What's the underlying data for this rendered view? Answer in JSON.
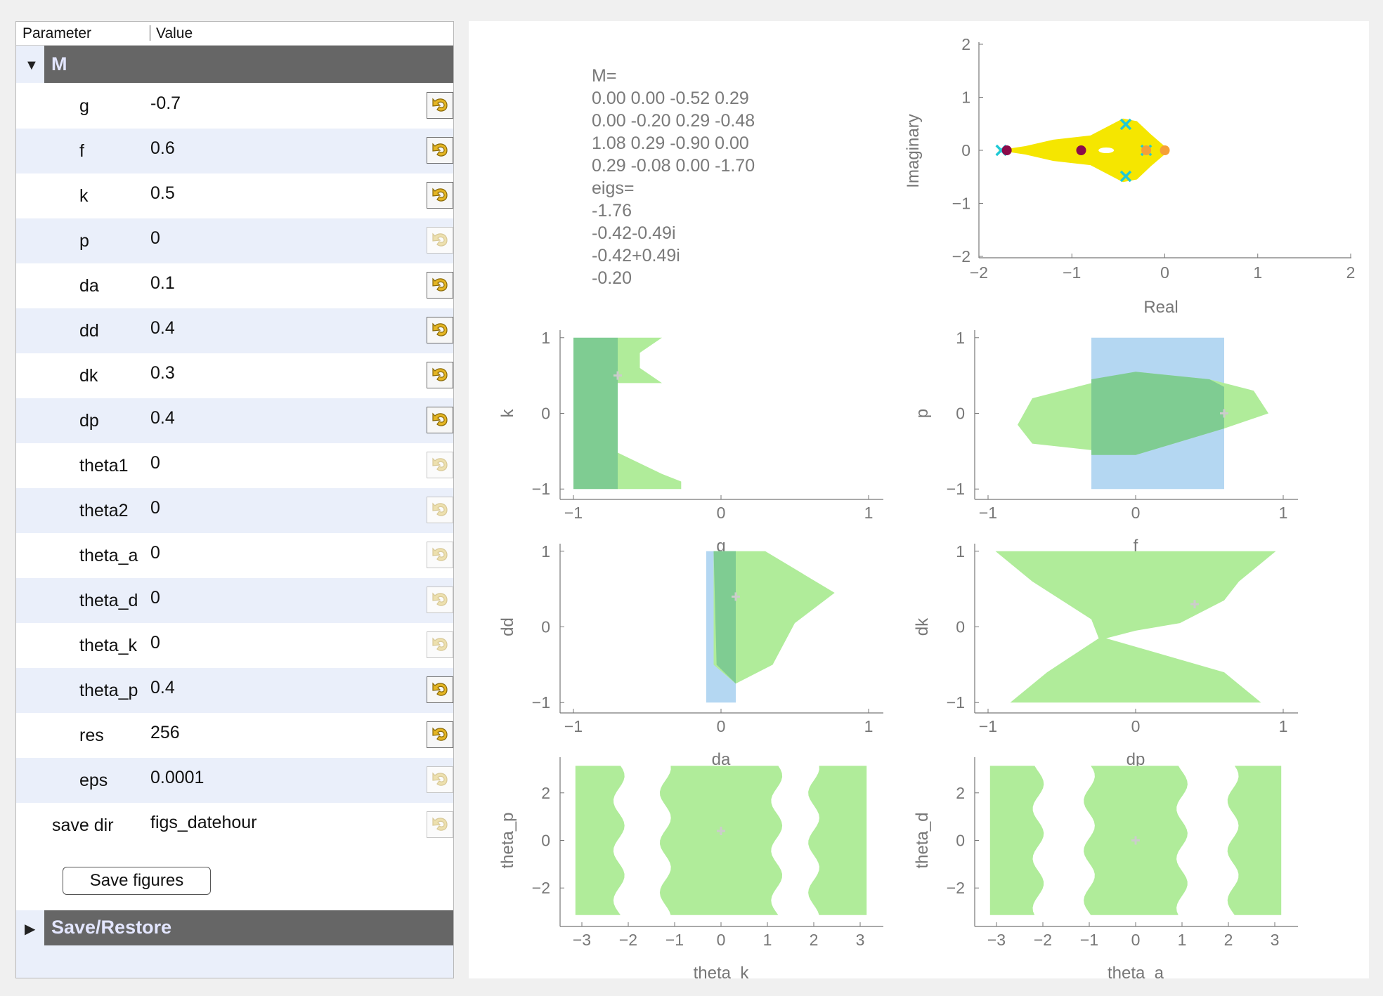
{
  "panel": {
    "header": {
      "parameter": "Parameter",
      "value": "Value"
    },
    "groups": {
      "m": "M",
      "save_restore": "Save/Restore"
    },
    "rows": [
      {
        "name": "g",
        "value": "-0.7",
        "reset_active": true
      },
      {
        "name": "f",
        "value": "0.6",
        "reset_active": true
      },
      {
        "name": "k",
        "value": "0.5",
        "reset_active": true
      },
      {
        "name": "p",
        "value": "0",
        "reset_active": false
      },
      {
        "name": "da",
        "value": "0.1",
        "reset_active": true
      },
      {
        "name": "dd",
        "value": "0.4",
        "reset_active": true
      },
      {
        "name": "dk",
        "value": "0.3",
        "reset_active": true
      },
      {
        "name": "dp",
        "value": "0.4",
        "reset_active": true
      },
      {
        "name": "theta1",
        "value": "0",
        "reset_active": false
      },
      {
        "name": "theta2",
        "value": "0",
        "reset_active": false
      },
      {
        "name": "theta_a",
        "value": "0",
        "reset_active": false
      },
      {
        "name": "theta_d",
        "value": "0",
        "reset_active": false
      },
      {
        "name": "theta_k",
        "value": "0",
        "reset_active": false
      },
      {
        "name": "theta_p",
        "value": "0.4",
        "reset_active": true
      },
      {
        "name": "res",
        "value": "256",
        "reset_active": true
      },
      {
        "name": "eps",
        "value": "0.0001",
        "reset_active": false
      },
      {
        "name": "save dir",
        "value": "figs_datehour",
        "reset_active": false
      }
    ],
    "save_button": "Save figures"
  },
  "matrix_text": [
    "M=",
    "0.00 0.00 -0.52 0.29",
    "0.00 -0.20 0.29 -0.48",
    "1.08 0.29 -0.90 0.00",
    "0.29 -0.08 0.00 -1.70",
    "eigs=",
    "-1.76",
    "-0.42-0.49i",
    "-0.42+0.49i",
    "-0.20"
  ],
  "colors": {
    "group_bar": "#666666",
    "group_title": "#e3e6ff",
    "alt_row": "#eaeffa",
    "stable_region": "#b0ec9a",
    "overlap_region": "#7fcc92",
    "blue_region": "#b4d7f2",
    "eig_cloud": "#f5e600",
    "eig_marker": "#1ec9d6",
    "dark_dot": "#8b0a4a",
    "orange_dot": "#f5a037",
    "current_point": "#cccccc",
    "axis": "#777777",
    "tick_text": "#777777"
  },
  "chart_data": [
    {
      "type": "scatter",
      "title": "",
      "xlabel": "Real",
      "ylabel": "Imaginary",
      "xlim": [
        -2,
        2
      ],
      "ylim": [
        -2,
        2
      ],
      "xticks": [
        "-2",
        "-1",
        "0",
        "1",
        "2"
      ],
      "yticks": [
        "-2",
        "-1",
        "0",
        "1",
        "2"
      ],
      "series": [
        {
          "marker": "x",
          "color": "#1ec9d6",
          "points": [
            [
              -1.76,
              0
            ],
            [
              -0.42,
              -0.49
            ],
            [
              -0.42,
              0.49
            ],
            [
              -0.2,
              0
            ]
          ]
        },
        {
          "marker": "dot",
          "color": "#8b0a4a",
          "points": [
            [
              -1.7,
              0
            ],
            [
              -0.9,
              0
            ]
          ]
        },
        {
          "marker": "dot",
          "color": "#f5a037",
          "points": [
            [
              -0.2,
              0
            ],
            [
              0,
              0
            ]
          ]
        }
      ],
      "region_outline": [
        [
          -1.8,
          0
        ],
        [
          -1.5,
          0.08
        ],
        [
          -1.2,
          0.2
        ],
        [
          -0.8,
          0.28
        ],
        [
          -0.45,
          0.6
        ],
        [
          -0.3,
          0.55
        ],
        [
          -0.15,
          0.3
        ],
        [
          0.05,
          0
        ],
        [
          -0.15,
          -0.3
        ],
        [
          -0.3,
          -0.55
        ],
        [
          -0.45,
          -0.6
        ],
        [
          -0.8,
          -0.28
        ],
        [
          -1.2,
          -0.2
        ],
        [
          -1.5,
          -0.08
        ]
      ]
    },
    {
      "type": "area",
      "xlabel": "g",
      "ylabel": "k",
      "xlim": [
        -1.1,
        1.1
      ],
      "ylim": [
        -1.1,
        1.1
      ],
      "xticks": [
        "-1",
        "0",
        "1"
      ],
      "yticks": [
        "-1",
        "0",
        "1"
      ],
      "current": [
        -0.7,
        0.5
      ],
      "green_region": [
        [
          -0.7,
          1
        ],
        [
          -0.4,
          1
        ],
        [
          -0.55,
          0.8
        ],
        [
          -0.55,
          0.6
        ],
        [
          -0.4,
          0.4
        ],
        [
          -0.7,
          0.4
        ],
        [
          -0.8,
          0
        ],
        [
          -0.72,
          -0.5
        ],
        [
          -0.4,
          -0.8
        ],
        [
          -0.27,
          -0.9
        ],
        [
          -0.27,
          -1
        ],
        [
          -0.7,
          -1
        ]
      ],
      "blue_region": [
        [
          -0.8,
          -0.1
        ],
        [
          -0.75,
          0.05
        ],
        [
          -0.7,
          0
        ],
        [
          -0.7,
          -0.7
        ],
        [
          -0.8,
          -0.4
        ]
      ],
      "overlap_region": [
        [
          -1,
          1
        ],
        [
          -0.7,
          1
        ],
        [
          -0.7,
          -1
        ],
        [
          -1,
          -1
        ]
      ]
    },
    {
      "type": "area",
      "xlabel": "f",
      "ylabel": "p",
      "xlim": [
        -1.1,
        1.1
      ],
      "ylim": [
        -1.1,
        1.1
      ],
      "xticks": [
        "-1",
        "0",
        "1"
      ],
      "yticks": [
        "-1",
        "0",
        "1"
      ],
      "current": [
        0.6,
        0
      ],
      "green_region": [
        [
          -0.8,
          -0.15
        ],
        [
          -0.7,
          0.2
        ],
        [
          0,
          0.55
        ],
        [
          0.5,
          0.45
        ],
        [
          0.8,
          0.3
        ],
        [
          0.9,
          0
        ],
        [
          0.6,
          -0.2
        ],
        [
          0,
          -0.55
        ],
        [
          -0.7,
          -0.4
        ]
      ],
      "blue_region": [
        [
          -0.3,
          1
        ],
        [
          0.6,
          1
        ],
        [
          0.6,
          -1
        ],
        [
          -0.3,
          -1
        ]
      ],
      "overlap_region": [
        [
          -0.3,
          0.45
        ],
        [
          0,
          0.55
        ],
        [
          0.5,
          0.45
        ],
        [
          0.6,
          0.35
        ],
        [
          0.6,
          -0.2
        ],
        [
          0,
          -0.55
        ],
        [
          -0.3,
          -0.55
        ]
      ]
    },
    {
      "type": "area",
      "xlabel": "da",
      "ylabel": "dd",
      "xlim": [
        -1.1,
        1.1
      ],
      "ylim": [
        -1.1,
        1.1
      ],
      "xticks": [
        "-1",
        "0",
        "1"
      ],
      "yticks": [
        "-1",
        "0",
        "1"
      ],
      "current": [
        0.1,
        0.4
      ],
      "green_region": [
        [
          0.1,
          1
        ],
        [
          0.3,
          1
        ],
        [
          0.77,
          0.45
        ],
        [
          0.5,
          0.05
        ],
        [
          0.35,
          -0.5
        ],
        [
          0.1,
          -0.75
        ],
        [
          -0.05,
          -0.5
        ],
        [
          -0.05,
          1
        ]
      ],
      "blue_region": [
        [
          -0.1,
          1
        ],
        [
          0.1,
          1
        ],
        [
          0.1,
          -1
        ],
        [
          -0.1,
          -1
        ]
      ],
      "overlap_region": [
        [
          -0.05,
          1
        ],
        [
          0.1,
          1
        ],
        [
          0.1,
          -0.75
        ],
        [
          -0.03,
          -0.5
        ]
      ]
    },
    {
      "type": "area",
      "xlabel": "dp",
      "ylabel": "dk",
      "xlim": [
        -1.1,
        1.1
      ],
      "ylim": [
        -1.1,
        1.1
      ],
      "xticks": [
        "-1",
        "0",
        "1"
      ],
      "yticks": [
        "-1",
        "0",
        "1"
      ],
      "current": [
        0.4,
        0.3
      ],
      "green_region": [
        [
          -0.95,
          1
        ],
        [
          0.95,
          1
        ],
        [
          0.7,
          0.6
        ],
        [
          0.6,
          0.35
        ],
        [
          0.3,
          0.05
        ],
        [
          0,
          -0.05
        ],
        [
          -0.2,
          -0.15
        ],
        [
          0.6,
          -0.6
        ],
        [
          0.85,
          -1
        ],
        [
          -0.85,
          -1
        ],
        [
          -0.6,
          -0.6
        ],
        [
          -0.25,
          -0.15
        ],
        [
          -0.3,
          0.1
        ],
        [
          -0.7,
          0.6
        ]
      ]
    },
    {
      "type": "area",
      "xlabel": "theta_k",
      "ylabel": "theta_p",
      "xlim": [
        -3.5,
        3.5
      ],
      "ylim": [
        -3.5,
        3.5
      ],
      "xticks": [
        "-3",
        "-2",
        "-1",
        "0",
        "1",
        "2",
        "3"
      ],
      "yticks": [
        "-2",
        "0",
        "2"
      ],
      "current": [
        0,
        0.4
      ],
      "bands": [
        [
          -3.14,
          -2.2
        ],
        [
          -1.2,
          1.2
        ],
        [
          2.0,
          3.14
        ]
      ]
    },
    {
      "type": "area",
      "xlabel": "theta_a",
      "ylabel": "theta_d",
      "xlim": [
        -3.5,
        3.5
      ],
      "ylim": [
        -3.5,
        3.5
      ],
      "xticks": [
        "-3",
        "-2",
        "-1",
        "0",
        "1",
        "2",
        "3"
      ],
      "yticks": [
        "-2",
        "0",
        "2"
      ],
      "current": [
        0,
        0
      ],
      "bands": [
        [
          -3.14,
          -2.1
        ],
        [
          -1.0,
          1.0
        ],
        [
          2.1,
          3.14
        ]
      ]
    }
  ]
}
